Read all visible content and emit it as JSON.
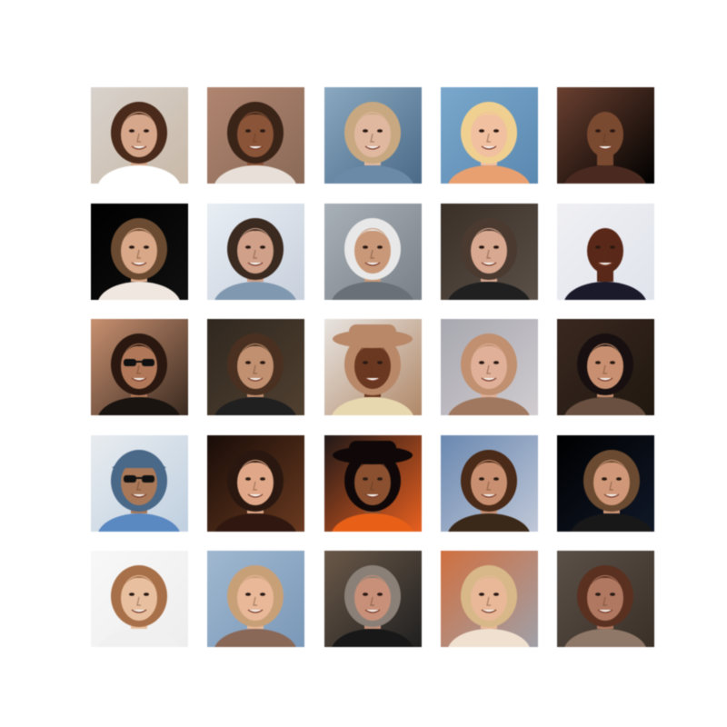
{
  "figure": {
    "background": "#ffffff",
    "rows": 5,
    "columns": 5
  },
  "tiles": [
    {
      "bg": "#d8d2cc",
      "bg2": "#c9b9a8",
      "hair": "#4a2a1a",
      "skin": "#d6a78a",
      "top": "#ffffff",
      "extra": "none"
    },
    {
      "bg": "#b08570",
      "bg2": "#8a6a58",
      "hair": "#3a2418",
      "skin": "#8a5438",
      "top": "#e8e0d8",
      "extra": "none"
    },
    {
      "bg": "#8aa8c0",
      "bg2": "#4a6a88",
      "hair": "#c8a880",
      "skin": "#e0b8a0",
      "top": "#6a8aa8",
      "extra": "none"
    },
    {
      "bg": "#7aa8cc",
      "bg2": "#5a88b0",
      "hair": "#f0d090",
      "skin": "#f0c0a0",
      "top": "#e8a070",
      "extra": "none"
    },
    {
      "bg": "#6a4030",
      "bg2": "#000000",
      "hair": "#2a1810",
      "skin": "#7a4a30",
      "top": "#4a2a20",
      "extra": "bald"
    },
    {
      "bg": "#000000",
      "bg2": "#101010",
      "hair": "#6a4a30",
      "skin": "#d8a888",
      "top": "#f0e8e0",
      "extra": "none"
    },
    {
      "bg": "#e8eef4",
      "bg2": "#c8d0dc",
      "hair": "#3a2a20",
      "skin": "#d0a088",
      "top": "#8098b0",
      "extra": "none"
    },
    {
      "bg": "#a8b0b8",
      "bg2": "#7a8088",
      "hair": "#e8e8e8",
      "skin": "#c89878",
      "top": "#6a7078",
      "extra": "none"
    },
    {
      "bg": "#3a3028",
      "bg2": "#5a5048",
      "hair": "#4a3a30",
      "skin": "#d8a890",
      "top": "#202020",
      "extra": "none"
    },
    {
      "bg": "#f0f0f4",
      "bg2": "#e0e4ec",
      "hair": "#100808",
      "skin": "#5a2818",
      "top": "#1a1a2a",
      "extra": "bald"
    },
    {
      "bg": "#c89070",
      "bg2": "#3a2a20",
      "hair": "#2a1810",
      "skin": "#b07858",
      "top": "#1a1410",
      "extra": "glasses"
    },
    {
      "bg": "#302820",
      "bg2": "#504030",
      "hair": "#4a3020",
      "skin": "#c09070",
      "top": "#202020",
      "extra": "none"
    },
    {
      "bg": "#e8e4e0",
      "bg2": "#b08868",
      "hair": "#b88868",
      "skin": "#6a3820",
      "top": "#e8d8b0",
      "extra": "hat"
    },
    {
      "bg": "#a8a8b0",
      "bg2": "#d0ccd0",
      "hair": "#c09070",
      "skin": "#e0b098",
      "top": "#a07860",
      "extra": "none"
    },
    {
      "bg": "#3a2820",
      "bg2": "#201810",
      "hair": "#181010",
      "skin": "#c89070",
      "top": "#6a5040",
      "extra": "none"
    },
    {
      "bg": "#e8ecf0",
      "bg2": "#c0d0e0",
      "hair": "#4a6888",
      "skin": "#a87858",
      "top": "#5a88c0",
      "extra": "cap-glasses"
    },
    {
      "bg": "#180c08",
      "bg2": "#6a3a20",
      "hair": "#2a1810",
      "skin": "#e0a888",
      "top": "#301810",
      "extra": "none"
    },
    {
      "bg": "#201818",
      "bg2": "#e86020",
      "hair": "#100808",
      "skin": "#8a5030",
      "top": "#e86018",
      "extra": "hat"
    },
    {
      "bg": "#6a88b0",
      "bg2": "#c0c8d8",
      "hair": "#4a2a18",
      "skin": "#c89070",
      "top": "#3a2818",
      "extra": "none"
    },
    {
      "bg": "#000000",
      "bg2": "#101828",
      "hair": "#6a4a30",
      "skin": "#d09878",
      "top": "#181818",
      "extra": "profile"
    },
    {
      "bg": "#f8f8f8",
      "bg2": "#eeeeee",
      "hair": "#a87048",
      "skin": "#e8c0a0",
      "top": "#f0f0f0",
      "extra": "none"
    },
    {
      "bg": "#a0b8d0",
      "bg2": "#7a98b8",
      "hair": "#c8a078",
      "skin": "#e8b898",
      "top": "#8a6858",
      "extra": "none"
    },
    {
      "bg": "#6a5848",
      "bg2": "#202020",
      "hair": "#8a8078",
      "skin": "#c89078",
      "top": "#181818",
      "extra": "none"
    },
    {
      "bg": "#d07040",
      "bg2": "#a0a0a8",
      "hair": "#d8b888",
      "skin": "#e8b898",
      "top": "#f0e0d0",
      "extra": "none"
    },
    {
      "bg": "#5a5048",
      "bg2": "#3a3028",
      "hair": "#5a3020",
      "skin": "#b07860",
      "top": "#907868",
      "extra": "none"
    }
  ]
}
